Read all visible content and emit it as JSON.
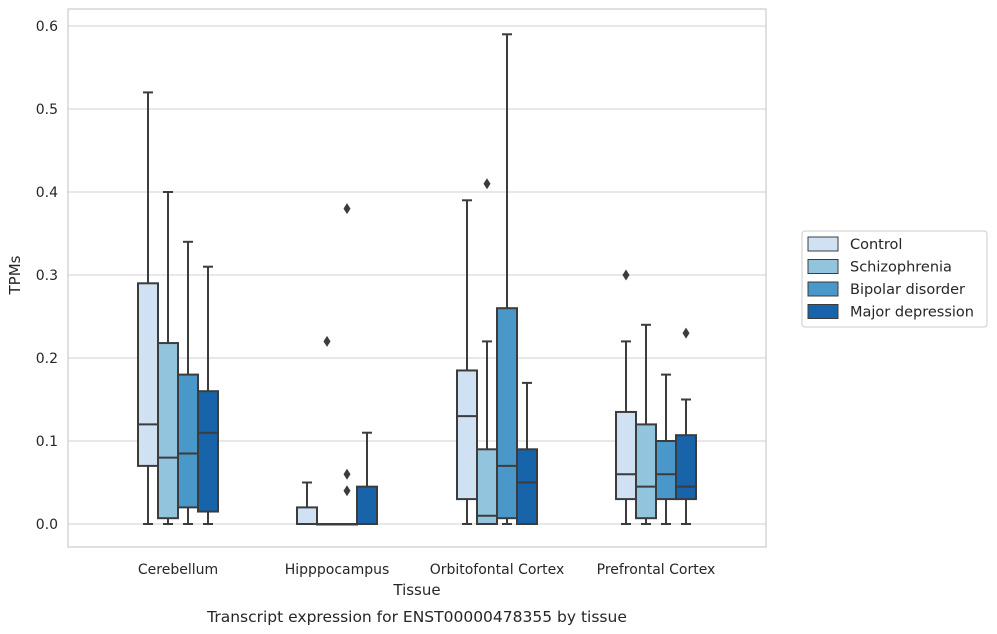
{
  "chart_data": {
    "type": "box",
    "title": "",
    "caption": "Transcript expression for ENST00000478355 by tissue",
    "xlabel": "Tissue",
    "ylabel": "TPMs",
    "ylim": [
      -0.028,
      0.62
    ],
    "yticks": [
      "0.0",
      "0.1",
      "0.2",
      "0.3",
      "0.4",
      "0.5",
      "0.6"
    ],
    "ytick_values": [
      0,
      0.1,
      0.2,
      0.3,
      0.4,
      0.5,
      0.6
    ],
    "grid": "horizontal",
    "legend_position": "right",
    "categories": [
      "Cerebellum",
      "Hipppocampus",
      "Orbitofontal Cortex",
      "Prefrontal Cortex"
    ],
    "series": [
      {
        "name": "Control",
        "color": "#cfe1f2",
        "boxes": [
          {
            "min": 0,
            "q1": 0.07,
            "median": 0.12,
            "q3": 0.29,
            "max": 0.52,
            "outliers": []
          },
          {
            "min": 0,
            "q1": 0,
            "median": 0,
            "q3": 0.02,
            "max": 0.05,
            "outliers": []
          },
          {
            "min": 0,
            "q1": 0.03,
            "median": 0.13,
            "q3": 0.185,
            "max": 0.39,
            "outliers": []
          },
          {
            "min": 0,
            "q1": 0.03,
            "median": 0.06,
            "q3": 0.135,
            "max": 0.22,
            "outliers": [
              0.3
            ]
          }
        ]
      },
      {
        "name": "Schizophrenia",
        "color": "#93c4de",
        "boxes": [
          {
            "min": 0,
            "q1": 0.007,
            "median": 0.08,
            "q3": 0.218,
            "max": 0.4,
            "outliers": []
          },
          {
            "min": 0,
            "q1": 0,
            "median": 0,
            "q3": 0,
            "max": 0,
            "outliers": [
              0.22
            ]
          },
          {
            "min": 0,
            "q1": 0,
            "median": 0.01,
            "q3": 0.09,
            "max": 0.22,
            "outliers": [
              0.41
            ]
          },
          {
            "min": 0,
            "q1": 0.007,
            "median": 0.045,
            "q3": 0.12,
            "max": 0.24,
            "outliers": []
          }
        ]
      },
      {
        "name": "Bipolar disorder",
        "color": "#4a98c9",
        "boxes": [
          {
            "min": 0,
            "q1": 0.02,
            "median": 0.085,
            "q3": 0.18,
            "max": 0.34,
            "outliers": []
          },
          {
            "min": 0,
            "q1": 0,
            "median": 0,
            "q3": 0,
            "max": 0,
            "outliers": [
              0.38,
              0.06,
              0.04
            ]
          },
          {
            "min": 0,
            "q1": 0.007,
            "median": 0.07,
            "q3": 0.26,
            "max": 0.59,
            "outliers": []
          },
          {
            "min": 0,
            "q1": 0.03,
            "median": 0.06,
            "q3": 0.1,
            "max": 0.18,
            "outliers": []
          }
        ]
      },
      {
        "name": "Major depression",
        "color": "#1764ab",
        "boxes": [
          {
            "min": 0,
            "q1": 0.015,
            "median": 0.11,
            "q3": 0.16,
            "max": 0.31,
            "outliers": []
          },
          {
            "min": 0,
            "q1": 0,
            "median": 0,
            "q3": 0.045,
            "max": 0.11,
            "outliers": []
          },
          {
            "min": 0,
            "q1": 0,
            "median": 0.05,
            "q3": 0.09,
            "max": 0.17,
            "outliers": []
          },
          {
            "min": 0,
            "q1": 0.03,
            "median": 0.045,
            "q3": 0.107,
            "max": 0.15,
            "outliers": [
              0.23
            ]
          }
        ]
      }
    ]
  }
}
